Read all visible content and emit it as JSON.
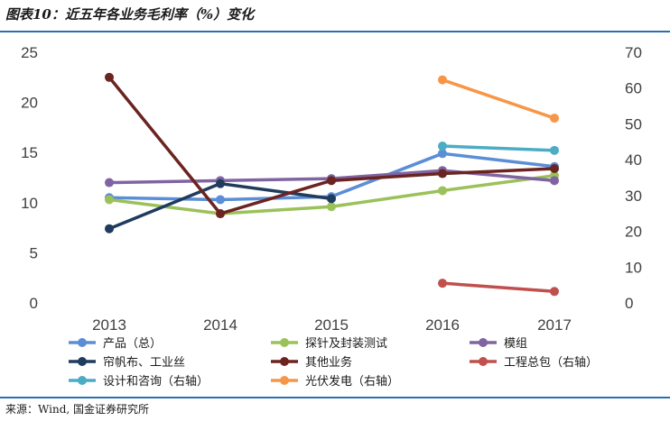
{
  "header": {
    "title": "图表10：近五年各业务毛利率（%）变化"
  },
  "footer": {
    "source": "来源：Wind, 国金证券研究所"
  },
  "chart_data": {
    "type": "line",
    "categories": [
      "2013",
      "2014",
      "2015",
      "2016",
      "2017"
    ],
    "left_axis": {
      "ylim": [
        0,
        25
      ],
      "ticks": [
        "0",
        "5",
        "10",
        "15",
        "20",
        "25"
      ]
    },
    "right_axis": {
      "ylim": [
        0,
        70
      ],
      "ticks": [
        "0",
        "10",
        "20",
        "30",
        "40",
        "50",
        "60",
        "70"
      ]
    },
    "grid": false,
    "legend_position": "bottom",
    "series": [
      {
        "name": "产品（总）",
        "axis": "left",
        "color": "#5b8ed6",
        "values": [
          10.5,
          10.3,
          10.6,
          14.9,
          13.6
        ]
      },
      {
        "name": "探针及封装测试",
        "axis": "left",
        "color": "#9bc15a",
        "values": [
          10.3,
          8.9,
          9.6,
          11.2,
          12.7
        ]
      },
      {
        "name": "模组",
        "axis": "left",
        "color": "#8064a2",
        "values": [
          12.0,
          12.2,
          12.4,
          13.2,
          12.2
        ]
      },
      {
        "name": "帘帆布、工业丝",
        "axis": "left",
        "color": "#1f3b5e",
        "values": [
          7.4,
          11.9,
          10.4,
          null,
          null
        ]
      },
      {
        "name": "其他业务",
        "axis": "left",
        "color": "#6b2420",
        "values": [
          22.5,
          8.9,
          12.2,
          12.9,
          13.4
        ]
      },
      {
        "name": "工程总包（右轴）",
        "axis": "right",
        "color": "#c0504d",
        "values": [
          null,
          null,
          null,
          5.5,
          3.2
        ]
      },
      {
        "name": "设计和咨询（右轴）",
        "axis": "right",
        "color": "#4bacc6",
        "values": [
          null,
          null,
          null,
          43.8,
          42.6
        ]
      },
      {
        "name": "光伏发电（右轴）",
        "axis": "right",
        "color": "#f79646",
        "values": [
          null,
          null,
          null,
          62.3,
          51.6
        ]
      }
    ]
  }
}
